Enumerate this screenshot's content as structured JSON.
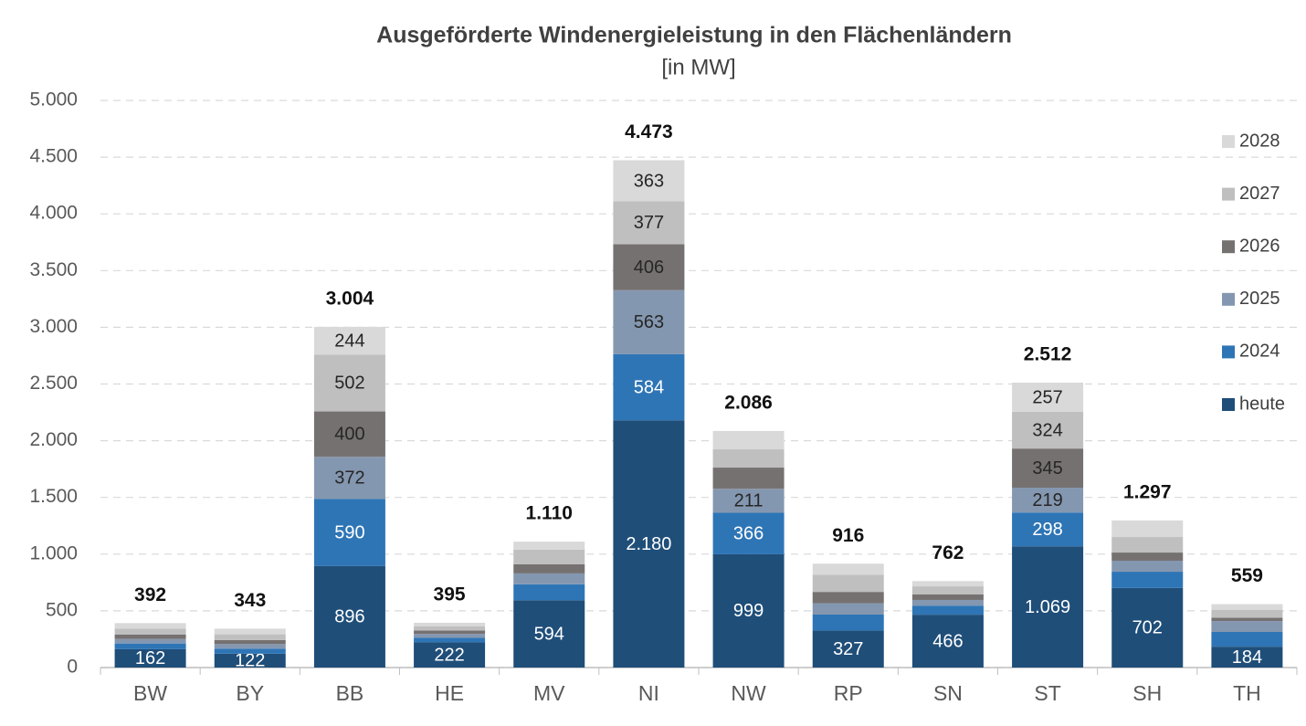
{
  "chart_data": {
    "type": "stacked_bar",
    "title": "Ausgeförderte Windenergieleistung in den Flächenländern",
    "subtitle": "[in MW]",
    "categories": [
      "BW",
      "BY",
      "BB",
      "HE",
      "MV",
      "NI",
      "NW",
      "RP",
      "SN",
      "ST",
      "SH",
      "TH"
    ],
    "series": [
      {
        "name": "heute",
        "color": "#1f4e79",
        "values": [
          162,
          122,
          896,
          222,
          594,
          2180,
          999,
          327,
          466,
          1069,
          702,
          184
        ],
        "value_labels": [
          "162",
          "122",
          "896",
          "222",
          "594",
          "2.180",
          "999",
          "327",
          "466",
          "1.069",
          "702",
          "184"
        ]
      },
      {
        "name": "2024",
        "color": "#2e75b6",
        "values": [
          50,
          45,
          590,
          40,
          140,
          584,
          366,
          140,
          80,
          298,
          143,
          130
        ],
        "value_labels": [
          null,
          null,
          "590",
          null,
          null,
          "584",
          "366",
          null,
          null,
          "298",
          null,
          null
        ]
      },
      {
        "name": "2025",
        "color": "#8497b0",
        "values": [
          40,
          40,
          372,
          35,
          96,
          563,
          211,
          100,
          50,
          219,
          97,
          96
        ],
        "value_labels": [
          null,
          null,
          "372",
          null,
          null,
          "563",
          "211",
          null,
          null,
          "219",
          null,
          null
        ]
      },
      {
        "name": "2026",
        "color": "#767171",
        "values": [
          40,
          36,
          400,
          30,
          80,
          406,
          187,
          100,
          50,
          345,
          72,
          30
        ],
        "value_labels": [
          null,
          null,
          "400",
          null,
          null,
          "406",
          null,
          null,
          null,
          "345",
          null,
          null
        ]
      },
      {
        "name": "2027",
        "color": "#bfbfbf",
        "values": [
          50,
          50,
          502,
          38,
          130,
          377,
          161,
          150,
          70,
          324,
          137,
          70
        ],
        "value_labels": [
          null,
          null,
          "502",
          null,
          null,
          "377",
          null,
          null,
          null,
          "324",
          null,
          null
        ]
      },
      {
        "name": "2028",
        "color": "#d9d9d9",
        "values": [
          50,
          50,
          244,
          30,
          70,
          363,
          162,
          99,
          46,
          257,
          146,
          49
        ],
        "value_labels": [
          null,
          null,
          "244",
          null,
          null,
          "363",
          null,
          null,
          null,
          "257",
          null,
          null
        ]
      }
    ],
    "totals": {
      "values": [
        392,
        343,
        3004,
        395,
        1110,
        4473,
        2086,
        916,
        762,
        2512,
        1297,
        559
      ],
      "value_labels": [
        "392",
        "343",
        "3.004",
        "395",
        "1.110",
        "4.473",
        "2.086",
        "916",
        "762",
        "2.512",
        "1.297",
        "559"
      ]
    },
    "ylim": [
      0,
      5000
    ],
    "yticks": [
      0,
      500,
      {
        "value": 1000,
        "label": "1.000"
      },
      {
        "value": 1500,
        "label": "1.500"
      },
      {
        "value": 2000,
        "label": "2.000"
      },
      {
        "value": 2500,
        "label": "2.500"
      },
      {
        "value": 3000,
        "label": "3.000"
      },
      {
        "value": 3500,
        "label": "3.500"
      },
      {
        "value": 4000,
        "label": "4.000"
      },
      {
        "value": 4500,
        "label": "4.500"
      },
      {
        "value": 5000,
        "label": "5.000"
      }
    ],
    "grid": true,
    "legend": "right"
  }
}
